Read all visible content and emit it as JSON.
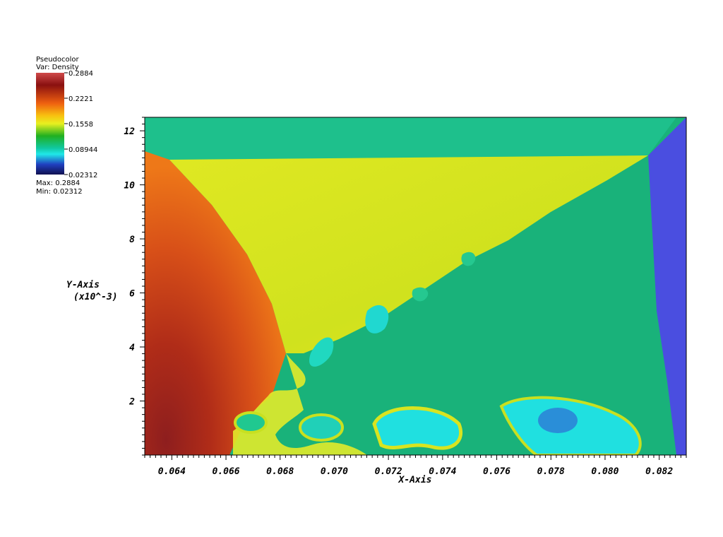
{
  "legend": {
    "title": "Pseudocolor",
    "variable": "Var: Density",
    "max_label": "Max: 0.2884",
    "min_label": "Min: 0.02312",
    "ticks": [
      "0.2884",
      "0.2221",
      "0.1558",
      "0.08944",
      "0.02312"
    ]
  },
  "colors": {
    "top_band": "#1ec08c",
    "blue_region": "#4a4ee0",
    "yellow_region": "#d8e81e",
    "green_region": "#19b27a",
    "red_region": "#d24a18",
    "dark_red": "#8e1e1e",
    "cyan": "#1ee0e0"
  },
  "chart_data": {
    "type": "heatmap",
    "title": "",
    "xlabel": "X-Axis",
    "ylabel": "Y-Axis",
    "ylabel_unit": "(x10^-3)",
    "xlim": [
      0.063,
      0.083
    ],
    "ylim": [
      0,
      12.5
    ],
    "x_ticks": [
      "0.064",
      "0.066",
      "0.068",
      "0.070",
      "0.072",
      "0.074",
      "0.076",
      "0.078",
      "0.080",
      "0.082"
    ],
    "x_tick_values": [
      0.064,
      0.066,
      0.068,
      0.07,
      0.072,
      0.074,
      0.076,
      0.078,
      0.08,
      0.082
    ],
    "y_ticks": [
      "2",
      "4",
      "6",
      "8",
      "10",
      "12"
    ],
    "y_tick_values": [
      2,
      4,
      6,
      8,
      10,
      12
    ],
    "colorbar": {
      "variable": "Density",
      "min": 0.02312,
      "max": 0.2884,
      "tick_values": [
        0.2884,
        0.2221,
        0.1558,
        0.08944,
        0.02312
      ]
    }
  }
}
